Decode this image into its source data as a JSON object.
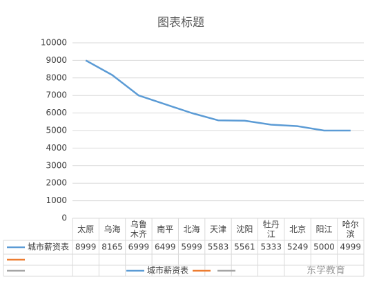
{
  "chart_data": {
    "type": "line",
    "title": "图表标题",
    "categories": [
      "太原",
      "乌海",
      "乌鲁木齐",
      "南平",
      "北海",
      "天津",
      "沈阳",
      "牡丹江",
      "北京",
      "阳江",
      "哈尔滨"
    ],
    "series": [
      {
        "name": "城市薪资表",
        "color": "#5b9bd5",
        "values": [
          8999,
          8165,
          6999,
          6499,
          5999,
          5583,
          5561,
          5333,
          5249,
          5000,
          4999
        ]
      },
      {
        "color": "#ed7d31",
        "values": [
          null,
          null,
          null,
          null,
          null,
          null,
          null,
          null,
          null,
          null,
          null
        ]
      },
      {
        "color": "#a5a5a5",
        "values": [
          null,
          null,
          null,
          null,
          null,
          null,
          null,
          null,
          null,
          null,
          null
        ]
      }
    ],
    "ylim": [
      0,
      10000
    ],
    "yticks": [
      0,
      1000,
      2000,
      3000,
      4000,
      5000,
      6000,
      7000,
      8000,
      9000,
      10000
    ],
    "grid": true,
    "legend": "bottom",
    "data_table": true,
    "watermark": "东学教育"
  }
}
